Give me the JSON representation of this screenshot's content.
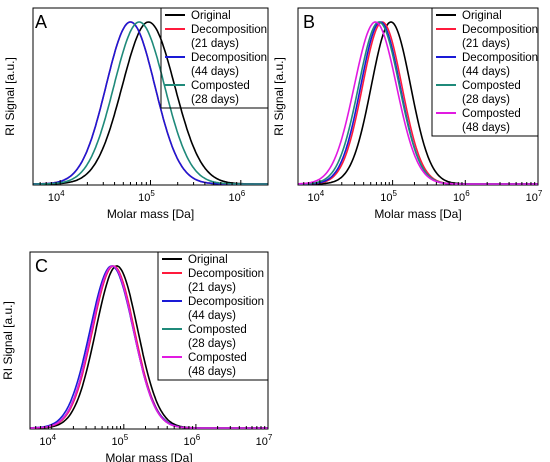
{
  "chart_data": [
    {
      "panel": "A",
      "type": "line",
      "xlabel": "Molar mass [Da]",
      "ylabel": "RI Signal [a.u.]",
      "x_scale": "log",
      "xlim": [
        5000,
        2000000
      ],
      "x_ticks": [
        {
          "value": 10000,
          "base": "10",
          "exp": "4"
        },
        {
          "value": 100000,
          "base": "10",
          "exp": "5"
        },
        {
          "value": 1000000,
          "base": "10",
          "exp": "6"
        }
      ],
      "legend_position": "top-right",
      "series": [
        {
          "name": "Original",
          "lines": [
            "Original"
          ],
          "color": "#000000",
          "peak": 95000,
          "width": 0.29
        },
        {
          "name": "Decomposition (21 days)",
          "lines": [
            "Decomposition",
            "(21 days)"
          ],
          "color": "#ff1a3c",
          "peak": 60000,
          "width": 0.27
        },
        {
          "name": "Decomposition (44 days)",
          "lines": [
            "Decomposition",
            "(44 days)"
          ],
          "color": "#1a1ad6",
          "peak": 60000,
          "width": 0.27
        },
        {
          "name": "Composted (28 days)",
          "lines": [
            "Composted",
            "(28 days)"
          ],
          "color": "#1f8a7a",
          "peak": 75000,
          "width": 0.28
        }
      ]
    },
    {
      "panel": "B",
      "type": "line",
      "xlabel": "Molar mass [Da]",
      "ylabel": "RI Signal [a.u.]",
      "x_scale": "log",
      "xlim": [
        5000,
        10000000
      ],
      "x_ticks": [
        {
          "value": 10000,
          "base": "10",
          "exp": "4"
        },
        {
          "value": 100000,
          "base": "10",
          "exp": "5"
        },
        {
          "value": 1000000,
          "base": "10",
          "exp": "6"
        },
        {
          "value": 10000000,
          "base": "10",
          "exp": "7"
        }
      ],
      "legend_position": "top-right",
      "series": [
        {
          "name": "Original",
          "lines": [
            "Original"
          ],
          "color": "#000000",
          "peak": 95000,
          "width": 0.27
        },
        {
          "name": "Decomposition (21 days)",
          "lines": [
            "Decomposition",
            "(21 days)"
          ],
          "color": "#ff1a3c",
          "peak": 72000,
          "width": 0.27
        },
        {
          "name": "Decomposition (44 days)",
          "lines": [
            "Decomposition",
            "(44 days)"
          ],
          "color": "#1a1ad6",
          "peak": 68000,
          "width": 0.27
        },
        {
          "name": "Composted (28 days)",
          "lines": [
            "Composted",
            "(28 days)"
          ],
          "color": "#1f8a7a",
          "peak": 65000,
          "width": 0.28
        },
        {
          "name": "Composted (48 days)",
          "lines": [
            "Composted",
            "(48 days)"
          ],
          "color": "#e11ae1",
          "peak": 58000,
          "width": 0.29
        }
      ]
    },
    {
      "panel": "C",
      "type": "line",
      "xlabel": "Molar mass [Da]",
      "ylabel": "RI Signal [a.u.]",
      "x_scale": "log",
      "xlim": [
        5000,
        10000000
      ],
      "x_ticks": [
        {
          "value": 10000,
          "base": "10",
          "exp": "4"
        },
        {
          "value": 100000,
          "base": "10",
          "exp": "5"
        },
        {
          "value": 1000000,
          "base": "10",
          "exp": "6"
        },
        {
          "value": 10000000,
          "base": "10",
          "exp": "7"
        }
      ],
      "legend_position": "top-right",
      "series": [
        {
          "name": "Original",
          "lines": [
            "Original"
          ],
          "color": "#000000",
          "peak": 80000,
          "width": 0.29
        },
        {
          "name": "Decomposition (21 days)",
          "lines": [
            "Decomposition",
            "(21 days)"
          ],
          "color": "#ff1a3c",
          "peak": 72000,
          "width": 0.29
        },
        {
          "name": "Decomposition (44 days)",
          "lines": [
            "Decomposition",
            "(44 days)"
          ],
          "color": "#1a1ad6",
          "peak": 68000,
          "width": 0.3
        },
        {
          "name": "Composted (28 days)",
          "lines": [
            "Composted",
            "(28 days)"
          ],
          "color": "#1f8a7a",
          "peak": 70000,
          "width": 0.29
        },
        {
          "name": "Composted (48 days)",
          "lines": [
            "Composted",
            "(48 days)"
          ],
          "color": "#e11ae1",
          "peak": 70000,
          "width": 0.29
        }
      ]
    }
  ]
}
